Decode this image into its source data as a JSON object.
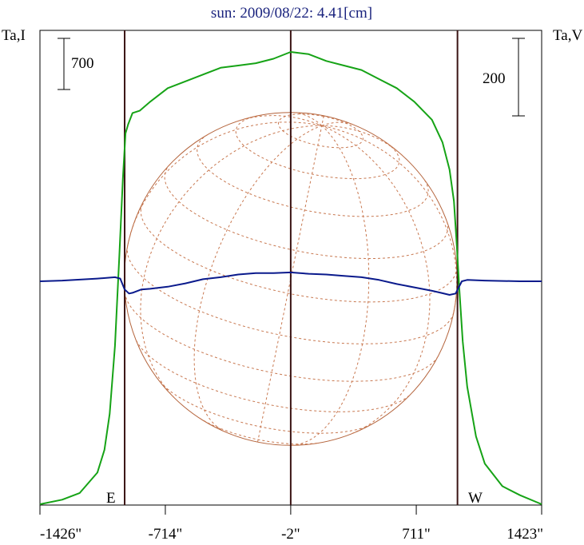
{
  "chart_data": {
    "type": "line",
    "title": "sun: 2009/08/22: 4.41[cm]",
    "left_axis_label": "Ta,I",
    "right_axis_label": "Ta,V",
    "left_scale_bar": "700",
    "right_scale_bar": "200",
    "x_tick_labels": [
      "-1426\"",
      "-714\"",
      "-2\"",
      "711\"",
      "1423\""
    ],
    "x_ticks": [
      -1426,
      -714,
      -2,
      711,
      1423
    ],
    "xlim": [
      -1426,
      1423
    ],
    "limb_labels": {
      "east": "E",
      "west": "W"
    },
    "limb_positions": [
      -945,
      945
    ],
    "center_position": -2,
    "disk_radius": 945,
    "series": [
      {
        "name": "I",
        "color": "#16a316",
        "x": [
          -1426,
          -1300,
          -1200,
          -1100,
          -1060,
          -1030,
          -1000,
          -975,
          -955,
          -940,
          -925,
          -900,
          -860,
          -800,
          -700,
          -600,
          -500,
          -400,
          -300,
          -200,
          -100,
          -2,
          100,
          200,
          300,
          400,
          500,
          600,
          700,
          800,
          860,
          900,
          925,
          940,
          955,
          975,
          1000,
          1050,
          1100,
          1200,
          1300,
          1423
        ],
        "y": [
          0,
          0.01,
          0.025,
          0.07,
          0.12,
          0.2,
          0.35,
          0.55,
          0.72,
          0.82,
          0.84,
          0.865,
          0.87,
          0.89,
          0.92,
          0.935,
          0.95,
          0.965,
          0.97,
          0.975,
          0.985,
          1.0,
          0.995,
          0.98,
          0.97,
          0.96,
          0.94,
          0.92,
          0.89,
          0.85,
          0.8,
          0.74,
          0.67,
          0.58,
          0.48,
          0.36,
          0.26,
          0.15,
          0.09,
          0.04,
          0.02,
          0.0
        ]
      },
      {
        "name": "V",
        "color": "#0a1a8c",
        "x": [
          -1426,
          -1300,
          -1100,
          -1000,
          -970,
          -945,
          -920,
          -900,
          -850,
          -800,
          -700,
          -600,
          -500,
          -400,
          -300,
          -200,
          -100,
          -2,
          100,
          200,
          300,
          400,
          500,
          600,
          700,
          800,
          850,
          900,
          935,
          950,
          970,
          1000,
          1100,
          1300,
          1423
        ],
        "y": [
          0,
          0.005,
          0.02,
          0.03,
          0.02,
          -0.06,
          -0.09,
          -0.085,
          -0.06,
          -0.055,
          -0.04,
          -0.015,
          0.015,
          0.03,
          0.05,
          0.06,
          0.06,
          0.065,
          0.055,
          0.05,
          0.04,
          0.03,
          0.01,
          -0.02,
          -0.045,
          -0.07,
          -0.085,
          -0.1,
          -0.09,
          -0.05,
          0.0,
          0.01,
          0.005,
          0.0,
          0.0
        ]
      }
    ]
  }
}
